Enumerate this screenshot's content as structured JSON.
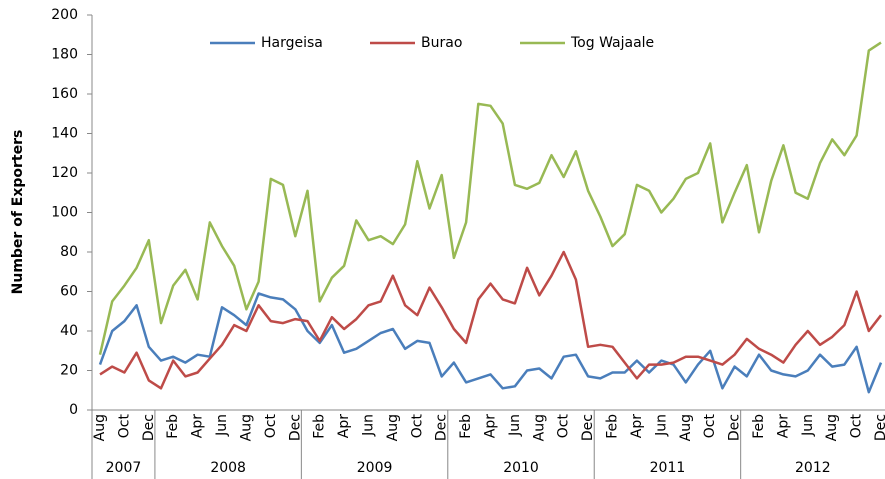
{
  "chart_data": {
    "type": "line",
    "y_label": "Number of Exporters",
    "categories": [
      "Aug",
      null,
      "Oct",
      null,
      "Dec",
      null,
      "Feb",
      null,
      "Apr",
      null,
      "Jun",
      null,
      "Aug",
      null,
      "Oct",
      null,
      "Dec",
      null,
      "Feb",
      null,
      "Apr",
      null,
      "Jun",
      null,
      "Aug",
      null,
      "Oct",
      null,
      "Dec",
      null,
      "Feb",
      null,
      "Apr",
      null,
      "Jun",
      null,
      "Aug",
      null,
      "Oct",
      null,
      "Dec",
      null,
      "Feb",
      null,
      "Apr",
      null,
      "Jun",
      null,
      "Aug",
      null,
      "Oct",
      null,
      "Dec",
      null,
      "Feb",
      null,
      "Apr",
      null,
      "Jun",
      null,
      "Aug",
      null,
      "Oct",
      null,
      "Dec"
    ],
    "years": [
      "2007",
      "2008",
      "2009",
      "2010",
      "2011",
      "2012"
    ],
    "series": [
      {
        "name": "Hargeisa",
        "color": "#4a7ebb",
        "values": [
          23,
          40,
          45,
          53,
          32,
          25,
          27,
          24,
          28,
          27,
          52,
          48,
          43,
          59,
          57,
          56,
          51,
          40,
          34,
          43,
          29,
          31,
          35,
          39,
          41,
          31,
          35,
          34,
          17,
          24,
          14,
          16,
          18,
          11,
          12,
          20,
          21,
          16,
          27,
          28,
          17,
          16,
          19,
          19,
          25,
          19,
          25,
          23,
          14,
          23,
          30,
          11,
          22,
          17,
          28,
          20,
          18,
          17,
          20,
          28,
          22,
          23,
          32,
          9,
          24
        ]
      },
      {
        "name": "Burao",
        "color": "#be4b48",
        "values": [
          18,
          22,
          19,
          29,
          15,
          11,
          25,
          17,
          19,
          26,
          33,
          43,
          40,
          53,
          45,
          44,
          46,
          45,
          35,
          47,
          41,
          46,
          53,
          55,
          68,
          53,
          48,
          62,
          52,
          41,
          34,
          56,
          64,
          56,
          54,
          72,
          58,
          68,
          80,
          66,
          32,
          33,
          32,
          24,
          16,
          23,
          23,
          24,
          27,
          27,
          25,
          23,
          28,
          36,
          31,
          28,
          24,
          33,
          40,
          33,
          37,
          43,
          60,
          40,
          48
        ]
      },
      {
        "name": "Tog Wajaale",
        "color": "#98b954",
        "values": [
          28,
          55,
          63,
          72,
          86,
          44,
          63,
          71,
          56,
          95,
          83,
          73,
          51,
          65,
          117,
          114,
          88,
          111,
          55,
          67,
          73,
          96,
          86,
          88,
          84,
          94,
          126,
          102,
          119,
          77,
          95,
          155,
          154,
          145,
          114,
          112,
          115,
          129,
          118,
          131,
          111,
          98,
          83,
          89,
          114,
          111,
          100,
          107,
          117,
          120,
          135,
          95,
          110,
          124,
          90,
          116,
          134,
          110,
          107,
          125,
          137,
          129,
          139,
          182,
          186
        ]
      }
    ],
    "ylim": [
      0,
      200
    ],
    "yticks": [
      0,
      20,
      40,
      60,
      80,
      100,
      120,
      140,
      160,
      180,
      200
    ],
    "legend": "top"
  }
}
